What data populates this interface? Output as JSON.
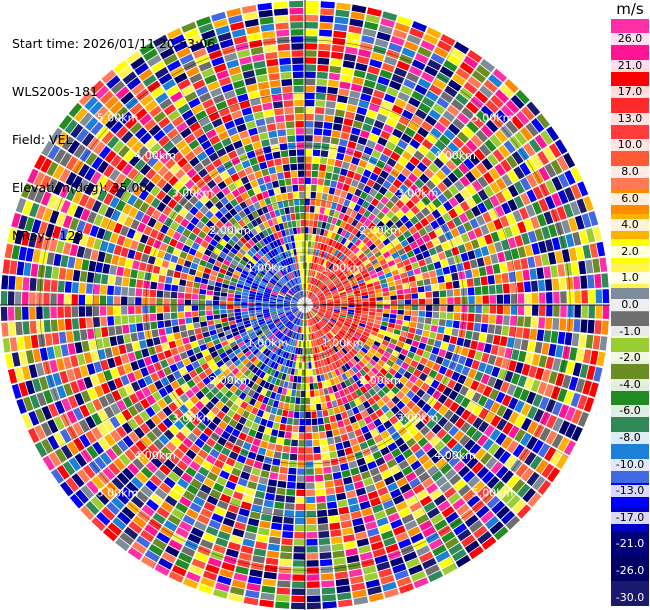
{
  "header": {
    "start_time": "Start time: 2026/01/11 20:53:06",
    "instrument": "WLS200s-181",
    "field": "Field: VEL",
    "elevation": "Elevation(deg): 35.00",
    "nrays": "NRays: 120"
  },
  "ppi": {
    "n_rays": 120,
    "range_labels": [
      "1.00km",
      "2.00km",
      "3.00km",
      "4.00km",
      "5.00km"
    ]
  },
  "colorbar": {
    "unit": "m/s",
    "colors": [
      "#ff2fa8",
      "#ff1493",
      "#ff0000",
      "#ff2a2a",
      "#ff3b3b",
      "#ff5a36",
      "#ff7a55",
      "#ff8c00",
      "#ffb000",
      "#ffff00",
      "#fff44f",
      "#7f8c9a",
      "#6e6e6e",
      "#9acd32",
      "#6b8e23",
      "#228b22",
      "#2e8b57",
      "#1e7fd8",
      "#4169e1",
      "#0000ff",
      "#0000c8",
      "#00007a",
      "#000066",
      "#191970"
    ],
    "labels": [
      "26.0",
      "21.0",
      "17.0",
      "13.0",
      "10.0",
      "8.0",
      "6.0",
      "4.0",
      "2.0",
      "1.0",
      "0.0",
      "-1.0",
      "-2.0",
      "-4.0",
      "-6.0",
      "-8.0",
      "-10.0",
      "-13.0",
      "-17.0",
      "-21.0",
      "-26.0",
      "-30.0"
    ]
  }
}
